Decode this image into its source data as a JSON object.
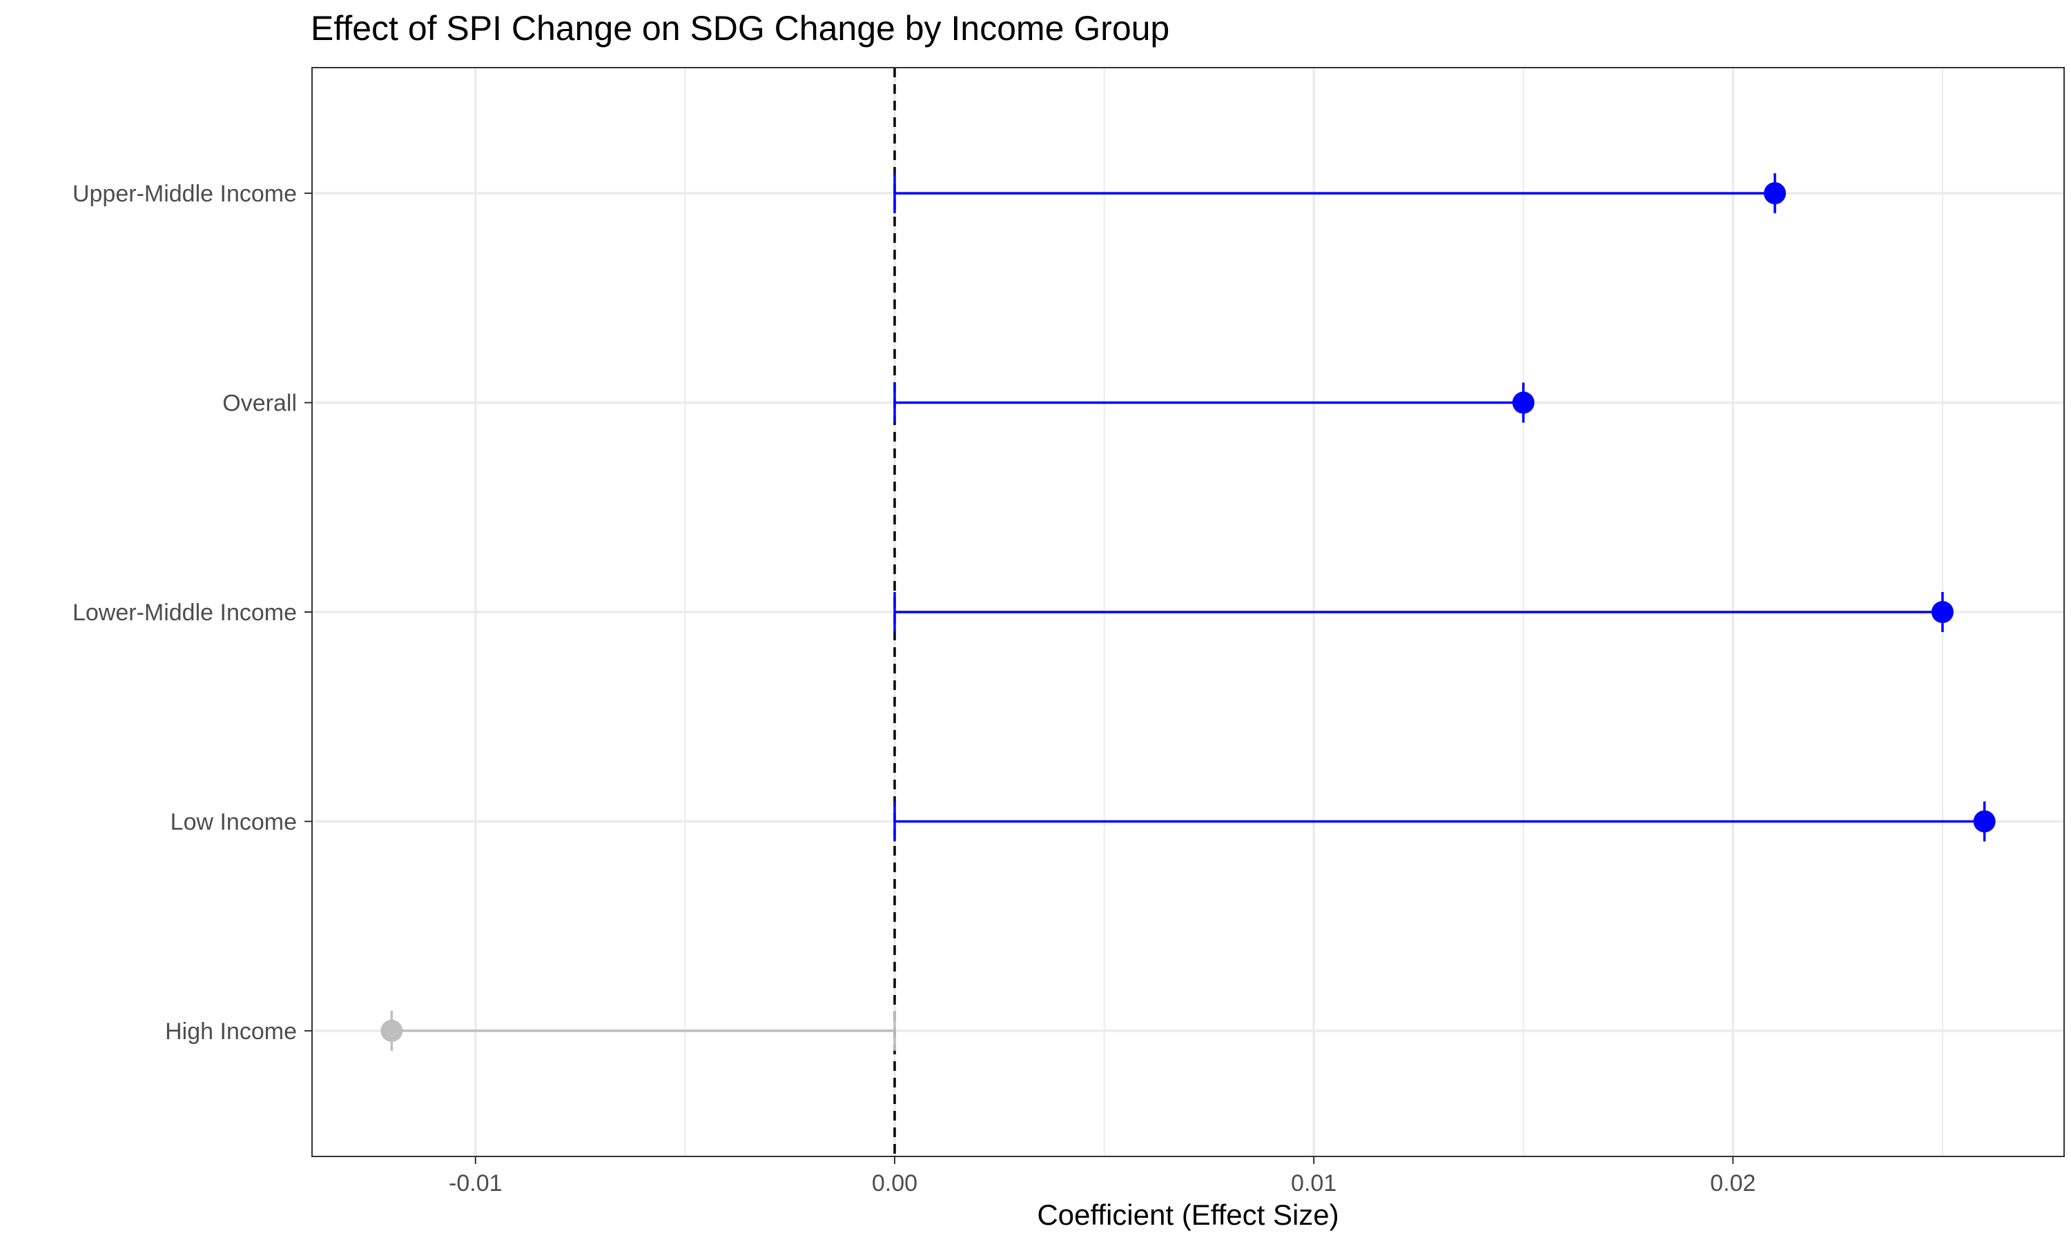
{
  "chart_data": {
    "type": "scatter",
    "title": "Effect of SPI Change on SDG Change by Income Group",
    "xlabel": "Coefficient (Effect Size)",
    "ylabel": "",
    "categories": [
      "Upper-Middle Income",
      "Overall",
      "Lower-Middle Income",
      "Low Income",
      "High Income"
    ],
    "values": [
      0.021,
      0.015,
      0.025,
      0.026,
      -0.012
    ],
    "baseline": 0.0,
    "xlim": [
      -0.0139,
      0.0279
    ],
    "xticks": [
      -0.01,
      0.0,
      0.01,
      0.02
    ],
    "xtick_labels": [
      "-0.01",
      "0.00",
      "0.01",
      "0.02"
    ],
    "reference_line": {
      "x": 0.0,
      "style": "dashed"
    },
    "grid": true,
    "legend": "none",
    "colors": {
      "significant": "#0000ff",
      "not_significant": "#bebebe",
      "grid": "#ebebeb",
      "panel_border": "#333333",
      "reference": "#000000"
    },
    "significant": [
      true,
      true,
      true,
      true,
      false
    ]
  }
}
